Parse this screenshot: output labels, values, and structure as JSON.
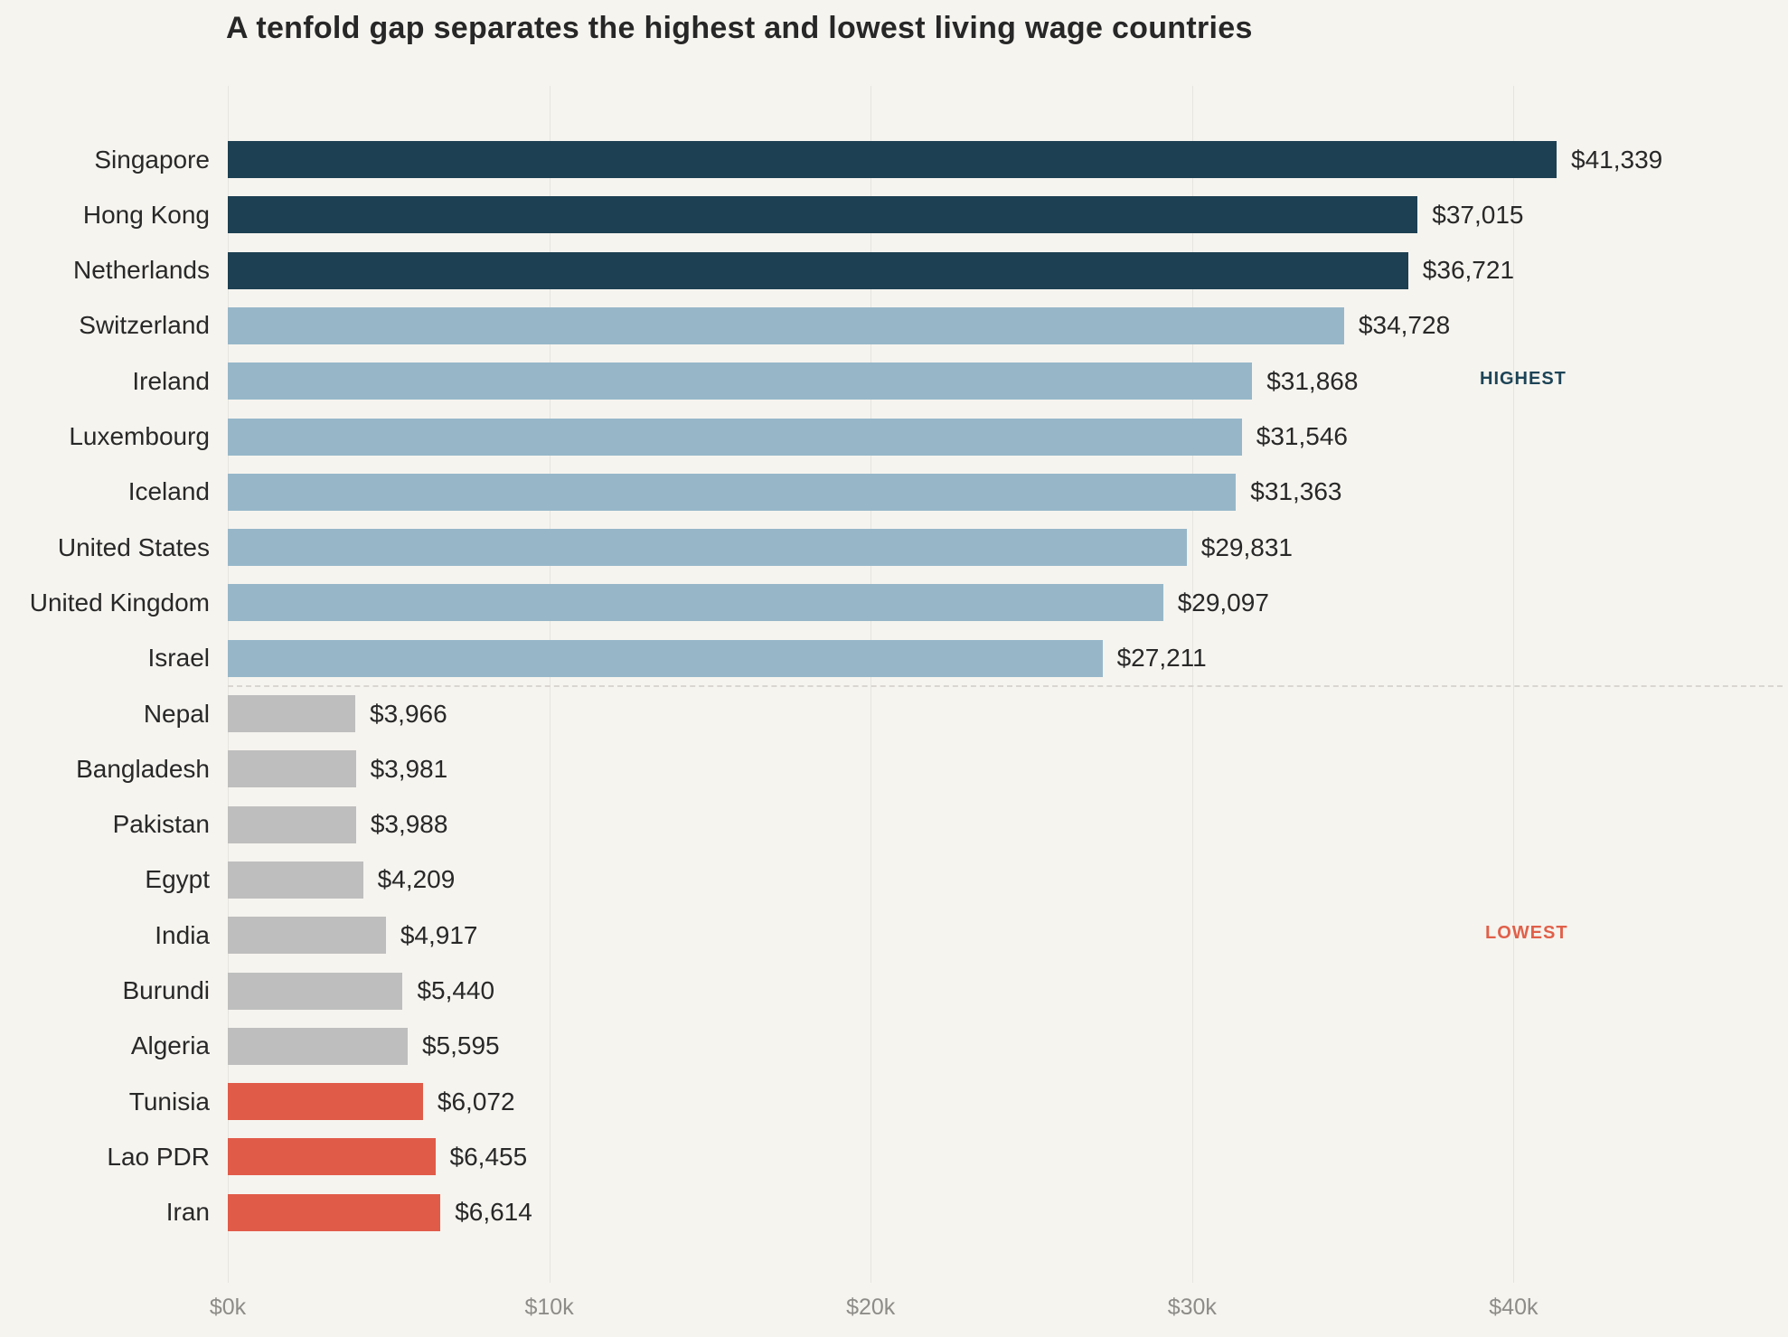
{
  "title": "A tenfold gap separates the highest and lowest living wage countries",
  "annotations": {
    "highest": "HIGHEST",
    "lowest": "LOWEST"
  },
  "colors": {
    "background": "#f6f4ef",
    "dark": "#1d4053",
    "light": "#97b7c9",
    "gray": "#bebebe",
    "red": "#e15b49",
    "highest_label": "#1d4457",
    "lowest_label": "#e0604a",
    "gridline": "#e6e4df",
    "separator": "#d9d6d1",
    "axis_text": "#8e8c88",
    "text": "#282828"
  },
  "chart_data": {
    "type": "bar",
    "orientation": "horizontal",
    "title": "A tenfold gap separates the highest and lowest living wage countries",
    "categories": [
      "Singapore",
      "Hong Kong",
      "Netherlands",
      "Switzerland",
      "Ireland",
      "Luxembourg",
      "Iceland",
      "United States",
      "United Kingdom",
      "Israel",
      "Nepal",
      "Bangladesh",
      "Pakistan",
      "Egypt",
      "India",
      "Burundi",
      "Algeria",
      "Tunisia",
      "Lao PDR",
      "Iran"
    ],
    "values": [
      41339,
      37015,
      36721,
      34728,
      31868,
      31546,
      31363,
      29831,
      29097,
      27211,
      3966,
      3981,
      3988,
      4209,
      4917,
      5440,
      5595,
      6072,
      6455,
      6614
    ],
    "value_labels": [
      "$41,339",
      "$37,015",
      "$36,721",
      "$34,728",
      "$31,868",
      "$31,546",
      "$31,363",
      "$29,831",
      "$29,097",
      "$27,211",
      "$3,966",
      "$3,981",
      "$3,988",
      "$4,209",
      "$4,917",
      "$5,440",
      "$5,595",
      "$6,072",
      "$6,455",
      "$6,614"
    ],
    "color_keys": [
      "dark",
      "dark",
      "dark",
      "light",
      "light",
      "light",
      "light",
      "light",
      "light",
      "light",
      "gray",
      "gray",
      "gray",
      "gray",
      "gray",
      "gray",
      "gray",
      "red",
      "red",
      "red"
    ],
    "xlabel": "",
    "ylabel": "",
    "xlim": [
      0,
      48500
    ],
    "x_ticks": {
      "labels": [
        "$0k",
        "$10k",
        "$20k",
        "$30k",
        "$40k"
      ],
      "values": [
        0,
        10000,
        20000,
        30000,
        40000
      ]
    },
    "grid": "vertical",
    "legend": "none",
    "separator_after_index": 9
  }
}
